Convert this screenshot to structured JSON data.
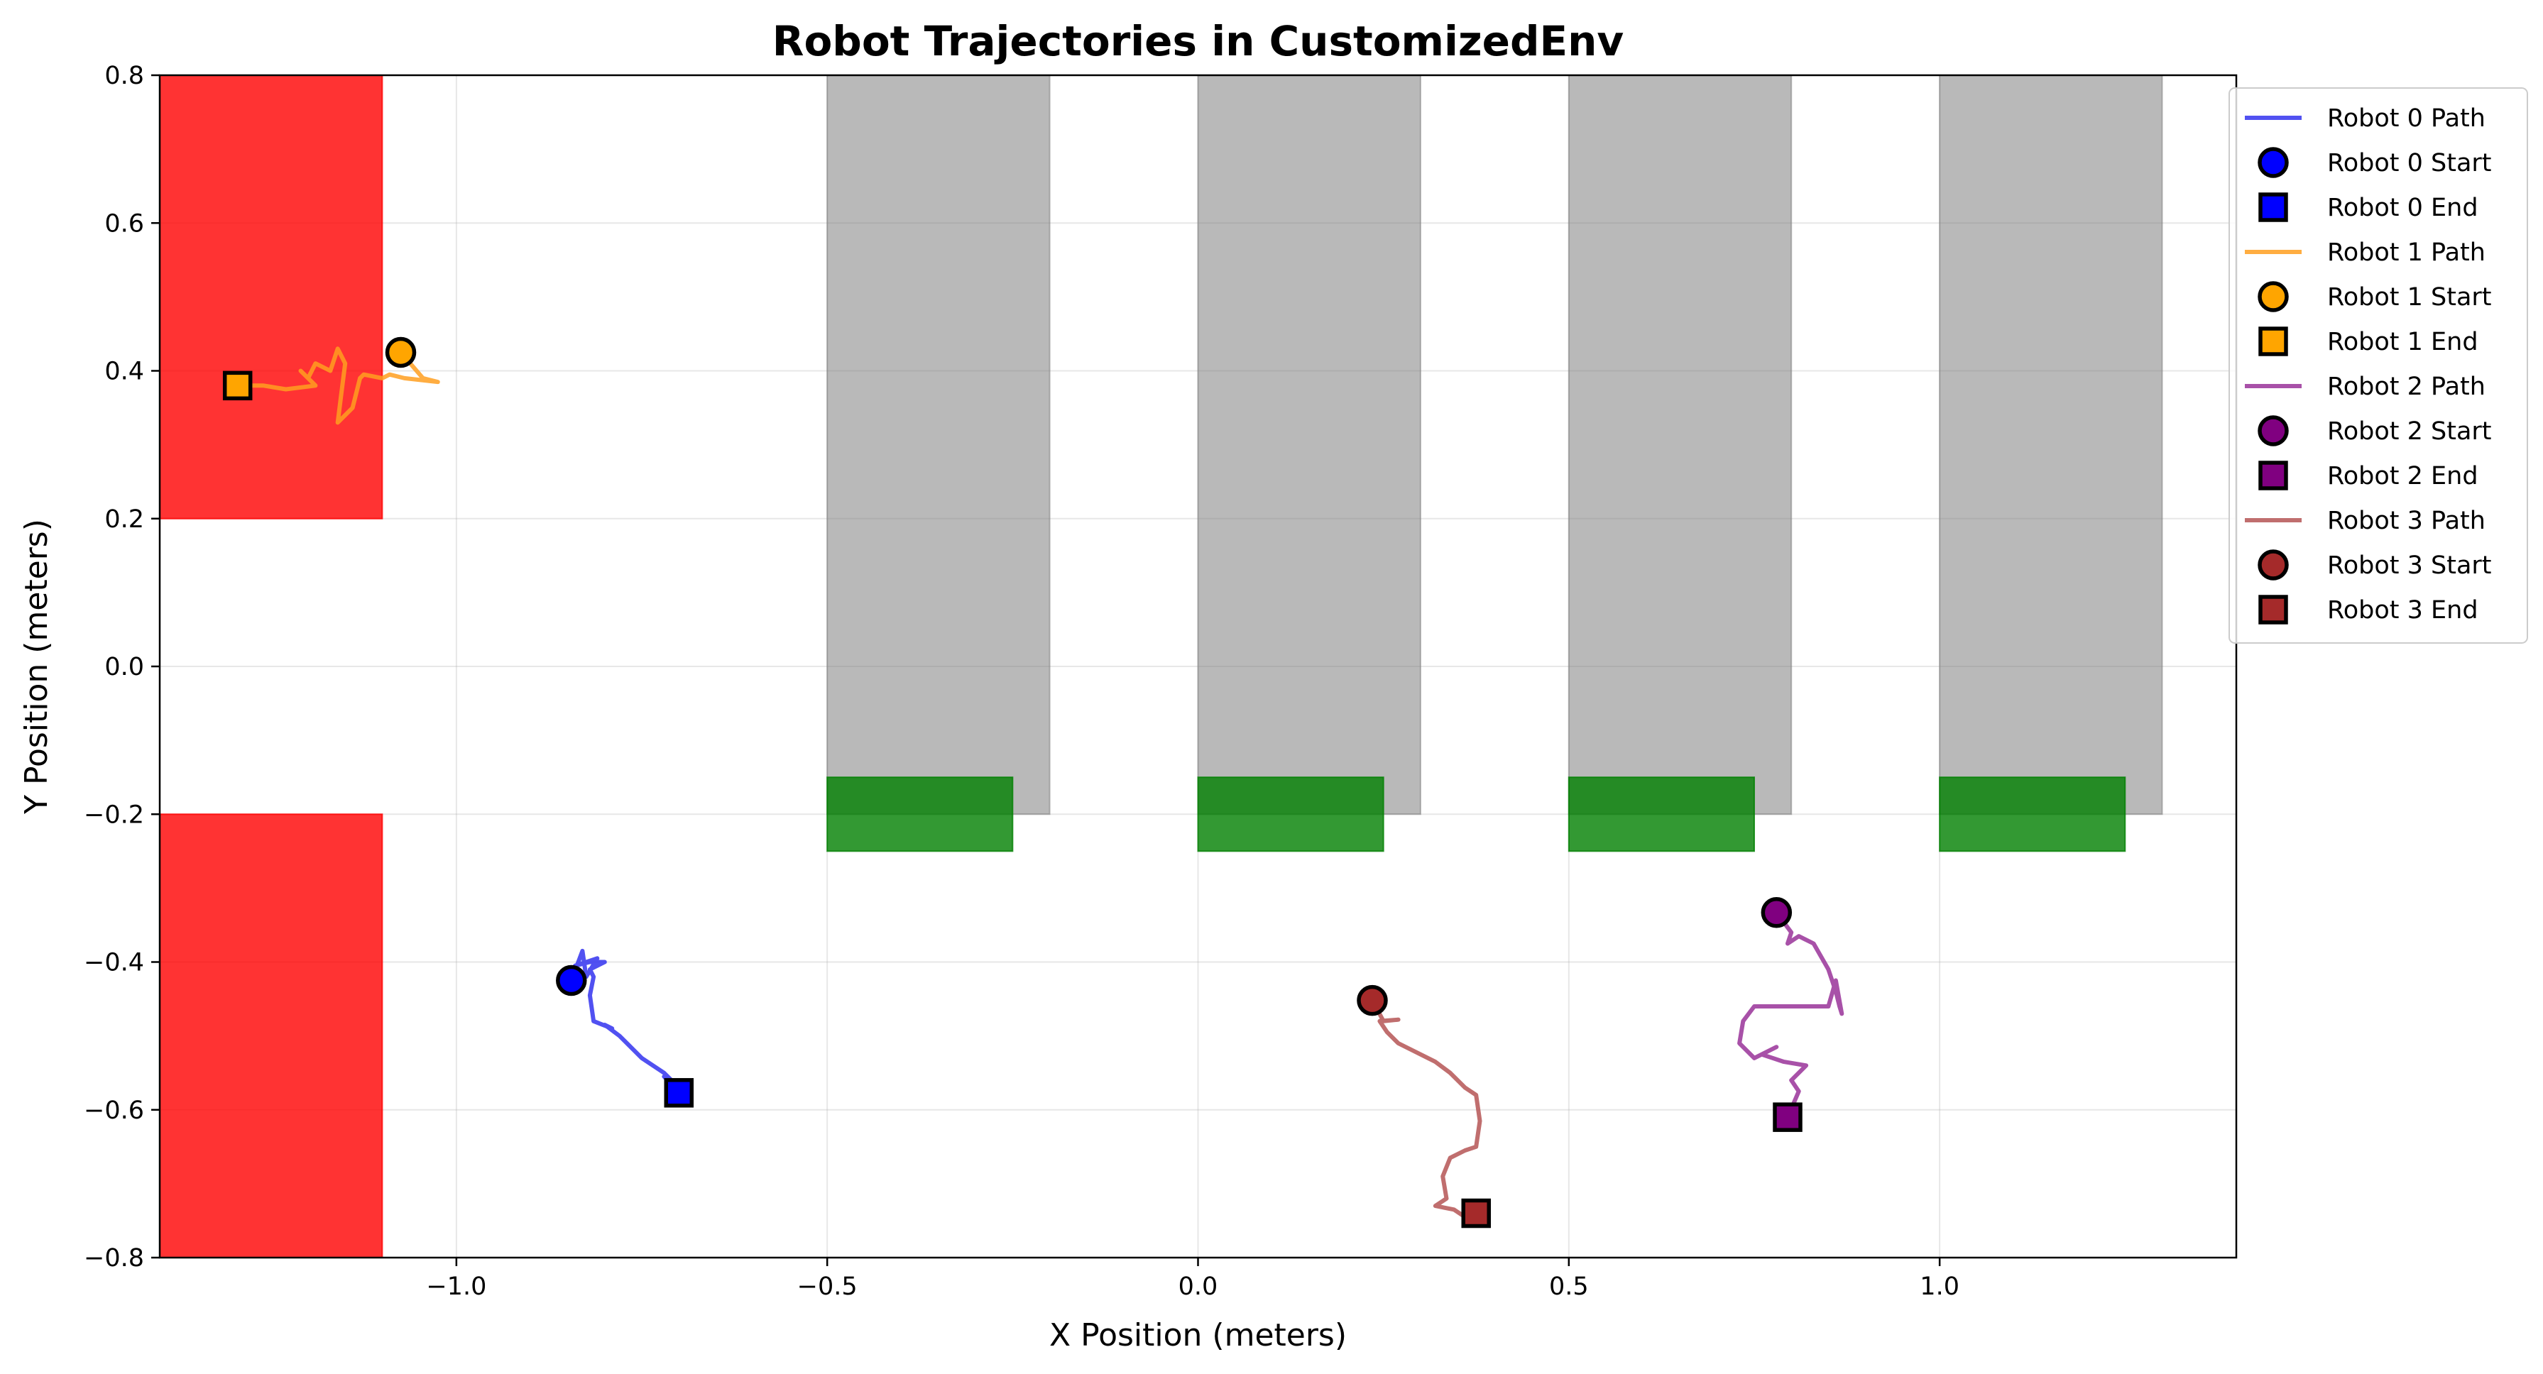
{
  "chart_data": {
    "type": "scatter",
    "title": "Robot Trajectories in CustomizedEnv",
    "xlabel": "X Position (meters)",
    "ylabel": "Y Position (meters)",
    "xlim": [
      -1.4,
      1.4
    ],
    "ylim": [
      -0.8,
      0.8
    ],
    "grid": true,
    "legend_position": "outside-top-right",
    "x_ticks": [
      {
        "value": -1.0,
        "label": "−1.0"
      },
      {
        "value": -0.5,
        "label": "−0.5"
      },
      {
        "value": 0.0,
        "label": "0.0"
      },
      {
        "value": 0.5,
        "label": "0.5"
      },
      {
        "value": 1.0,
        "label": "1.0"
      }
    ],
    "y_ticks": [
      {
        "value": -0.8,
        "label": "−0.8"
      },
      {
        "value": -0.6,
        "label": "−0.6"
      },
      {
        "value": -0.4,
        "label": "−0.4"
      },
      {
        "value": -0.2,
        "label": "−0.2"
      },
      {
        "value": 0.0,
        "label": "0.0"
      },
      {
        "value": 0.2,
        "label": "0.2"
      },
      {
        "value": 0.4,
        "label": "0.4"
      },
      {
        "value": 0.6,
        "label": "0.6"
      },
      {
        "value": 0.8,
        "label": "0.8"
      }
    ],
    "regions": [
      {
        "kind": "red-zone",
        "x": [
          -1.4,
          -1.1
        ],
        "y": [
          0.2,
          0.8
        ],
        "color": "#ff0000",
        "opacity": 0.8
      },
      {
        "kind": "red-zone",
        "x": [
          -1.4,
          -1.1
        ],
        "y": [
          -0.8,
          -0.2
        ],
        "color": "#ff0000",
        "opacity": 0.8
      },
      {
        "kind": "gray-column",
        "x": [
          -0.5,
          -0.2
        ],
        "y": [
          -0.2,
          0.8
        ],
        "color": "#808080",
        "opacity": 0.55
      },
      {
        "kind": "gray-column",
        "x": [
          0.0,
          0.3
        ],
        "y": [
          -0.2,
          0.8
        ],
        "color": "#808080",
        "opacity": 0.55
      },
      {
        "kind": "gray-column",
        "x": [
          0.5,
          0.8
        ],
        "y": [
          -0.2,
          0.8
        ],
        "color": "#808080",
        "opacity": 0.55
      },
      {
        "kind": "gray-column",
        "x": [
          1.0,
          1.3
        ],
        "y": [
          -0.2,
          0.8
        ],
        "color": "#808080",
        "opacity": 0.55
      },
      {
        "kind": "green-goal",
        "x": [
          -0.5,
          -0.25
        ],
        "y": [
          -0.25,
          -0.15
        ],
        "color": "#008000",
        "opacity": 0.8
      },
      {
        "kind": "green-goal",
        "x": [
          0.0,
          0.25
        ],
        "y": [
          -0.25,
          -0.15
        ],
        "color": "#008000",
        "opacity": 0.8
      },
      {
        "kind": "green-goal",
        "x": [
          0.5,
          0.75
        ],
        "y": [
          -0.25,
          -0.15
        ],
        "color": "#008000",
        "opacity": 0.8
      },
      {
        "kind": "green-goal",
        "x": [
          1.0,
          1.25
        ],
        "y": [
          -0.25,
          -0.15
        ],
        "color": "#008000",
        "opacity": 0.8
      }
    ],
    "series": [
      {
        "path_name": "Robot 0 Path",
        "start_name": "Robot 0 Start",
        "end_name": "Robot 0 End",
        "color": "#0000ff",
        "line_color": "#3333ee",
        "start": [
          -0.845,
          -0.425
        ],
        "end": [
          -0.7,
          -0.577
        ],
        "path": [
          [
            -0.845,
            -0.425
          ],
          [
            -0.83,
            -0.385
          ],
          [
            -0.825,
            -0.42
          ],
          [
            -0.81,
            -0.395
          ],
          [
            -0.84,
            -0.405
          ],
          [
            -0.82,
            -0.4
          ],
          [
            -0.8,
            -0.4
          ],
          [
            -0.82,
            -0.41
          ],
          [
            -0.815,
            -0.42
          ],
          [
            -0.82,
            -0.445
          ],
          [
            -0.815,
            -0.48
          ],
          [
            -0.79,
            -0.49
          ],
          [
            -0.8,
            -0.485
          ],
          [
            -0.78,
            -0.5
          ],
          [
            -0.75,
            -0.53
          ],
          [
            -0.72,
            -0.55
          ],
          [
            -0.71,
            -0.56
          ],
          [
            -0.72,
            -0.555
          ],
          [
            -0.7,
            -0.577
          ]
        ]
      },
      {
        "path_name": "Robot 1 Path",
        "start_name": "Robot 1 Start",
        "end_name": "Robot 1 End",
        "color": "#ffa500",
        "line_color": "#ff9f20",
        "start": [
          -1.075,
          0.425
        ],
        "end": [
          -1.295,
          0.38
        ],
        "path": [
          [
            -1.075,
            0.425
          ],
          [
            -1.045,
            0.39
          ],
          [
            -1.025,
            0.385
          ],
          [
            -1.07,
            0.39
          ],
          [
            -1.09,
            0.395
          ],
          [
            -1.1,
            0.39
          ],
          [
            -1.125,
            0.395
          ],
          [
            -1.13,
            0.39
          ],
          [
            -1.14,
            0.35
          ],
          [
            -1.16,
            0.33
          ],
          [
            -1.155,
            0.37
          ],
          [
            -1.15,
            0.41
          ],
          [
            -1.16,
            0.43
          ],
          [
            -1.17,
            0.4
          ],
          [
            -1.19,
            0.41
          ],
          [
            -1.2,
            0.39
          ],
          [
            -1.21,
            0.4
          ],
          [
            -1.19,
            0.38
          ],
          [
            -1.23,
            0.375
          ],
          [
            -1.26,
            0.38
          ],
          [
            -1.295,
            0.38
          ]
        ]
      },
      {
        "path_name": "Robot 2 Path",
        "start_name": "Robot 2 Start",
        "end_name": "Robot 2 End",
        "color": "#800080",
        "line_color": "#993399",
        "start": [
          0.78,
          -0.333
        ],
        "end": [
          0.795,
          -0.61
        ],
        "path": [
          [
            0.78,
            -0.333
          ],
          [
            0.8,
            -0.36
          ],
          [
            0.795,
            -0.375
          ],
          [
            0.81,
            -0.365
          ],
          [
            0.83,
            -0.375
          ],
          [
            0.85,
            -0.41
          ],
          [
            0.86,
            -0.44
          ],
          [
            0.865,
            -0.46
          ],
          [
            0.868,
            -0.47
          ],
          [
            0.86,
            -0.425
          ],
          [
            0.85,
            -0.46
          ],
          [
            0.75,
            -0.46
          ],
          [
            0.735,
            -0.48
          ],
          [
            0.73,
            -0.51
          ],
          [
            0.75,
            -0.53
          ],
          [
            0.78,
            -0.515
          ],
          [
            0.76,
            -0.525
          ],
          [
            0.79,
            -0.535
          ],
          [
            0.82,
            -0.54
          ],
          [
            0.8,
            -0.56
          ],
          [
            0.81,
            -0.575
          ],
          [
            0.795,
            -0.61
          ]
        ]
      },
      {
        "path_name": "Robot 3 Path",
        "start_name": "Robot 3 Start",
        "end_name": "Robot 3 End",
        "color": "#a52a2a",
        "line_color": "#b55555",
        "start": [
          0.235,
          -0.452
        ],
        "end": [
          0.375,
          -0.74
        ],
        "path": [
          [
            0.235,
            -0.452
          ],
          [
            0.25,
            -0.48
          ],
          [
            0.27,
            -0.478
          ],
          [
            0.245,
            -0.48
          ],
          [
            0.255,
            -0.495
          ],
          [
            0.27,
            -0.51
          ],
          [
            0.32,
            -0.535
          ],
          [
            0.34,
            -0.55
          ],
          [
            0.36,
            -0.57
          ],
          [
            0.375,
            -0.58
          ],
          [
            0.38,
            -0.615
          ],
          [
            0.375,
            -0.65
          ],
          [
            0.36,
            -0.655
          ],
          [
            0.34,
            -0.665
          ],
          [
            0.33,
            -0.69
          ],
          [
            0.335,
            -0.72
          ],
          [
            0.32,
            -0.73
          ],
          [
            0.345,
            -0.735
          ],
          [
            0.36,
            -0.745
          ],
          [
            0.375,
            -0.74
          ]
        ]
      }
    ]
  }
}
